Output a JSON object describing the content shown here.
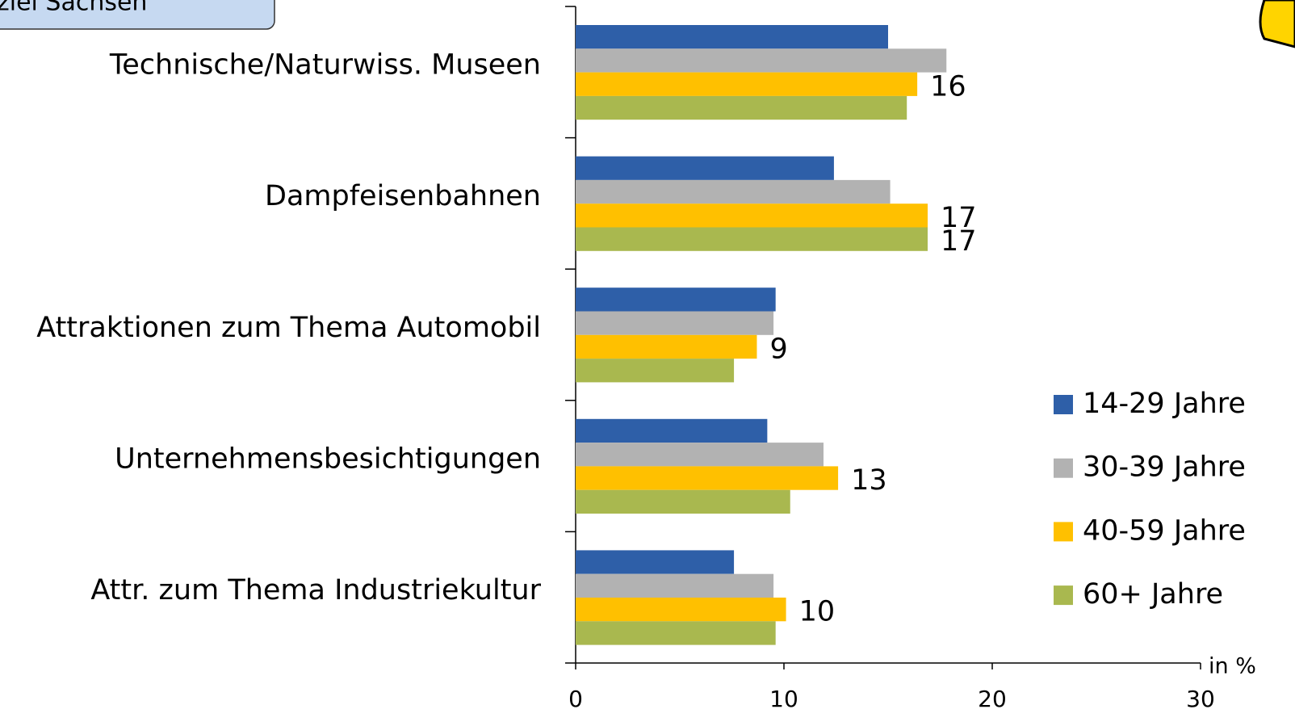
{
  "chart_data": {
    "type": "bar",
    "orientation": "horizontal",
    "title": "ziel Sachsen",
    "x_label": "in %",
    "categories": [
      "Technische/Naturwiss. Museen",
      "Dampfeisenbahnen",
      "Attraktionen zum Thema Automobil",
      "Unternehmensbesichtigungen",
      "Attr. zum Thema Industriekultur"
    ],
    "series": [
      {
        "name": "14-29 Jahre",
        "color": "#2e5fa8",
        "values": [
          15.0,
          12.4,
          9.6,
          9.2,
          7.6
        ]
      },
      {
        "name": "30-39 Jahre",
        "color": "#b2b2b2",
        "values": [
          17.8,
          15.1,
          9.5,
          11.9,
          9.5
        ]
      },
      {
        "name": "40-59 Jahre",
        "color": "#ffc000",
        "values": [
          16.4,
          16.9,
          8.7,
          12.6,
          10.1
        ],
        "value_labels": [
          "16",
          "17",
          "9",
          "13",
          "10"
        ]
      },
      {
        "name": "60+ Jahre",
        "color": "#a9b84f",
        "values": [
          15.9,
          16.9,
          7.6,
          10.3,
          9.6
        ],
        "value_labels": [
          null,
          "17",
          null,
          null,
          null
        ]
      }
    ],
    "xlim": [
      0,
      30
    ],
    "xticks": [
      0,
      10,
      20,
      30
    ],
    "legend": "right"
  }
}
